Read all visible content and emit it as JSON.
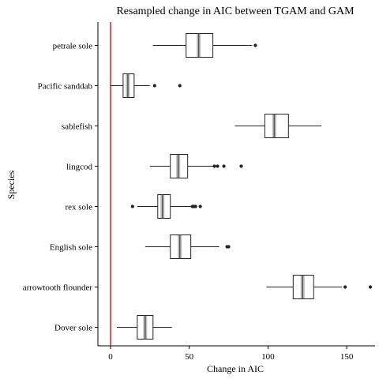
{
  "chart_data": {
    "type": "boxplot",
    "title": "Resampled change in AIC between TGAM and GAM",
    "xlabel": "Change in AIC",
    "ylabel": "Species",
    "xlim": [
      -8,
      168
    ],
    "xticks": [
      0,
      50,
      100,
      150
    ],
    "reference_line": {
      "x": 0,
      "color": "#cc0000"
    },
    "colors": {
      "box": "#222222",
      "median": "#888888",
      "outlier": "#222222"
    },
    "grid": false,
    "categories": [
      "petrale sole",
      "Pacific sanddab",
      "sablefish",
      "lingcod",
      "rex sole",
      "English sole",
      "arrowtooth flounder",
      "Dover sole"
    ],
    "boxes": [
      {
        "label": "petrale sole",
        "whisker_low": 27,
        "q1": 48,
        "median": 56,
        "q3": 65,
        "whisker_high": 90,
        "outliers": [
          92
        ]
      },
      {
        "label": "Pacific sanddab",
        "whisker_low": 0,
        "q1": 8,
        "median": 11,
        "q3": 15,
        "whisker_high": 25,
        "outliers": [
          28,
          44
        ]
      },
      {
        "label": "sablefish",
        "whisker_low": 79,
        "q1": 98,
        "median": 104,
        "q3": 113,
        "whisker_high": 134,
        "outliers": []
      },
      {
        "label": "lingcod",
        "whisker_low": 25,
        "q1": 38,
        "median": 43,
        "q3": 49,
        "whisker_high": 65,
        "outliers": [
          66,
          68,
          72,
          83
        ]
      },
      {
        "label": "rex sole",
        "whisker_low": 17,
        "q1": 30,
        "median": 33,
        "q3": 38,
        "whisker_high": 51,
        "outliers": [
          14,
          52,
          53,
          54,
          57
        ]
      },
      {
        "label": "English sole",
        "whisker_low": 22,
        "q1": 38,
        "median": 44,
        "q3": 51,
        "whisker_high": 69,
        "outliers": [
          74,
          75
        ]
      },
      {
        "label": "arrowtooth flounder",
        "whisker_low": 99,
        "q1": 116,
        "median": 122,
        "q3": 129,
        "whisker_high": 147,
        "outliers": [
          149,
          165
        ]
      },
      {
        "label": "Dover sole",
        "whisker_low": 4,
        "q1": 17,
        "median": 22,
        "q3": 27,
        "whisker_high": 39,
        "outliers": []
      }
    ]
  }
}
